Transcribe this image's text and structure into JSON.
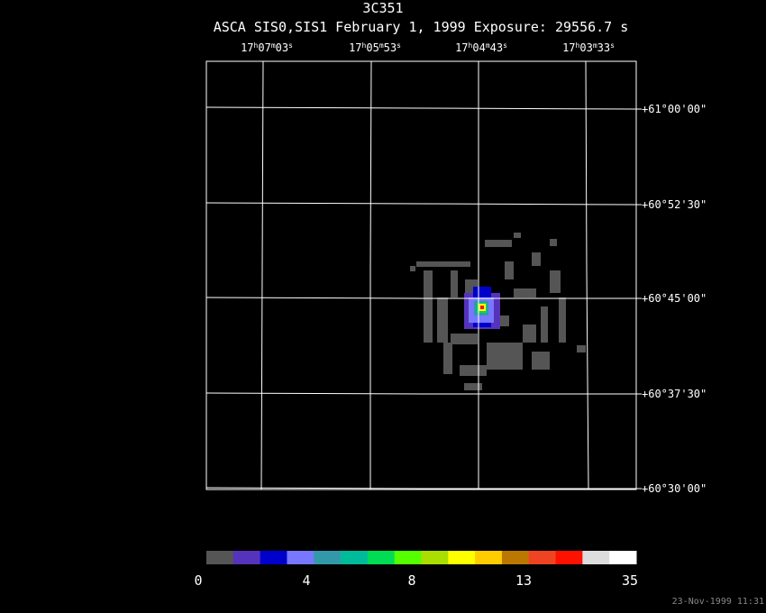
{
  "header": {
    "title": "3C351",
    "subtitle": "ASCA SIS0,SIS1 February 1, 1999 Exposure: 29556.7 s"
  },
  "ra_labels": [
    [
      "17",
      "h",
      "07",
      "m",
      "03",
      "s"
    ],
    [
      "17",
      "h",
      "05",
      "m",
      "53",
      "s"
    ],
    [
      "17",
      "h",
      "04",
      "m",
      "43",
      "s"
    ],
    [
      "17",
      "h",
      "03",
      "m",
      "33",
      "s"
    ]
  ],
  "dec_labels": [
    "+61°00'00\"",
    "+60°52'30\"",
    "+60°45'00\"",
    "+60°37'30\"",
    "+60°30'00\""
  ],
  "colorbar": {
    "colors": [
      "#555555",
      "#5533bb",
      "#0000cc",
      "#7777ff",
      "#3399aa",
      "#00bb99",
      "#00dd55",
      "#55ff00",
      "#aadd00",
      "#ffff00",
      "#ffcc00",
      "#bb7700",
      "#ee4422",
      "#ff1100",
      "#dddddd",
      "#ffffff"
    ],
    "labels": [
      "0",
      "4",
      "8",
      "13",
      "35"
    ]
  },
  "timestamp": "23-Nov-1999 11:31"
}
